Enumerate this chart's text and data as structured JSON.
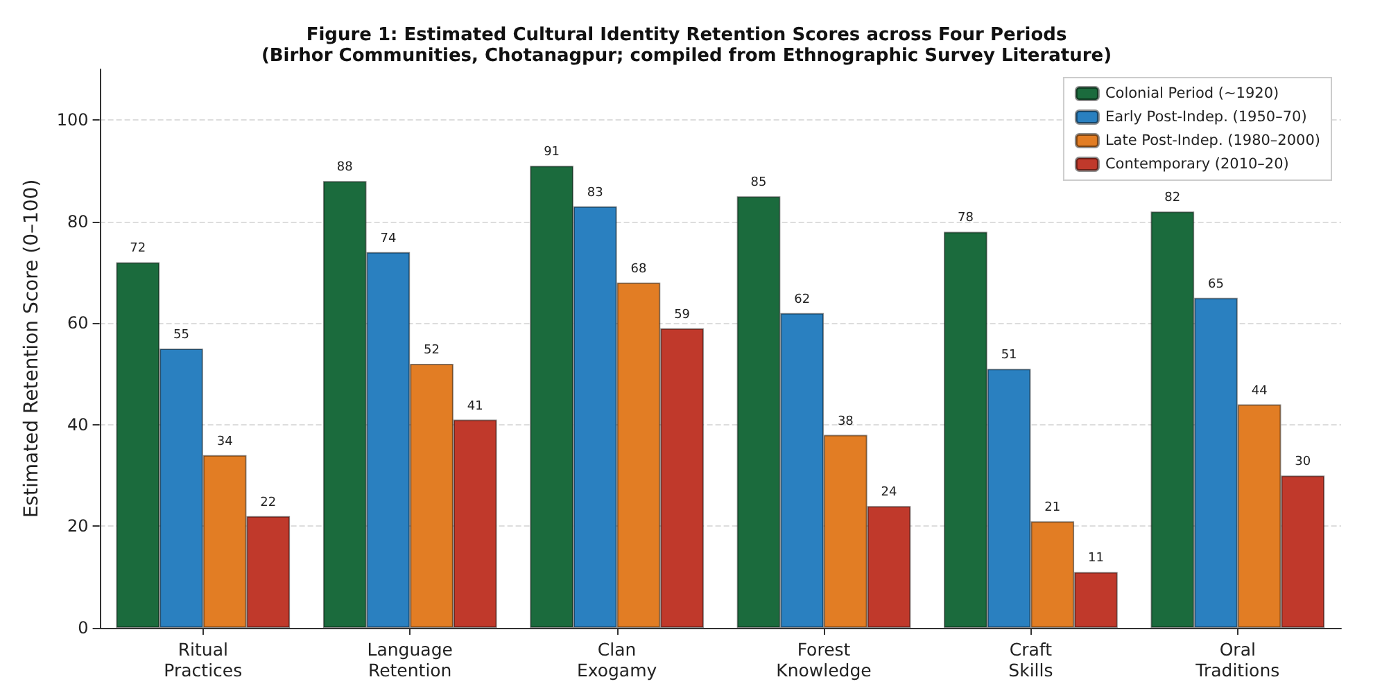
{
  "chart_data": {
    "type": "bar",
    "title": "Figure 1: Estimated Cultural Identity Retention Scores across Four Periods",
    "subtitle": "(Birhor Communities, Chotanagpur; compiled from Ethnographic Survey Literature)",
    "ylabel": "Estimated Retention Score (0–100)",
    "categories": [
      "Ritual\nPractices",
      "Language\nRetention",
      "Clan\nExogamy",
      "Forest\nKnowledge",
      "Craft\nSkills",
      "Oral\nTraditions"
    ],
    "series": [
      {
        "name": "Colonial Period (~1920)",
        "color": "#1b6b3d",
        "values": [
          72,
          88,
          91,
          85,
          78,
          82
        ]
      },
      {
        "name": "Early Post-Indep. (1950–70)",
        "color": "#2a80c0",
        "values": [
          55,
          74,
          83,
          62,
          51,
          65
        ]
      },
      {
        "name": "Late Post-Indep. (1980–2000)",
        "color": "#e27d24",
        "values": [
          34,
          52,
          68,
          38,
          21,
          44
        ]
      },
      {
        "name": "Contemporary (2010–20)",
        "color": "#c0392b",
        "values": [
          22,
          41,
          59,
          24,
          11,
          30
        ]
      }
    ],
    "ylim": [
      0,
      110
    ],
    "yticks": [
      0,
      20,
      40,
      60,
      80,
      100
    ],
    "grid": "y",
    "legend": "top right",
    "data_labels": true
  }
}
